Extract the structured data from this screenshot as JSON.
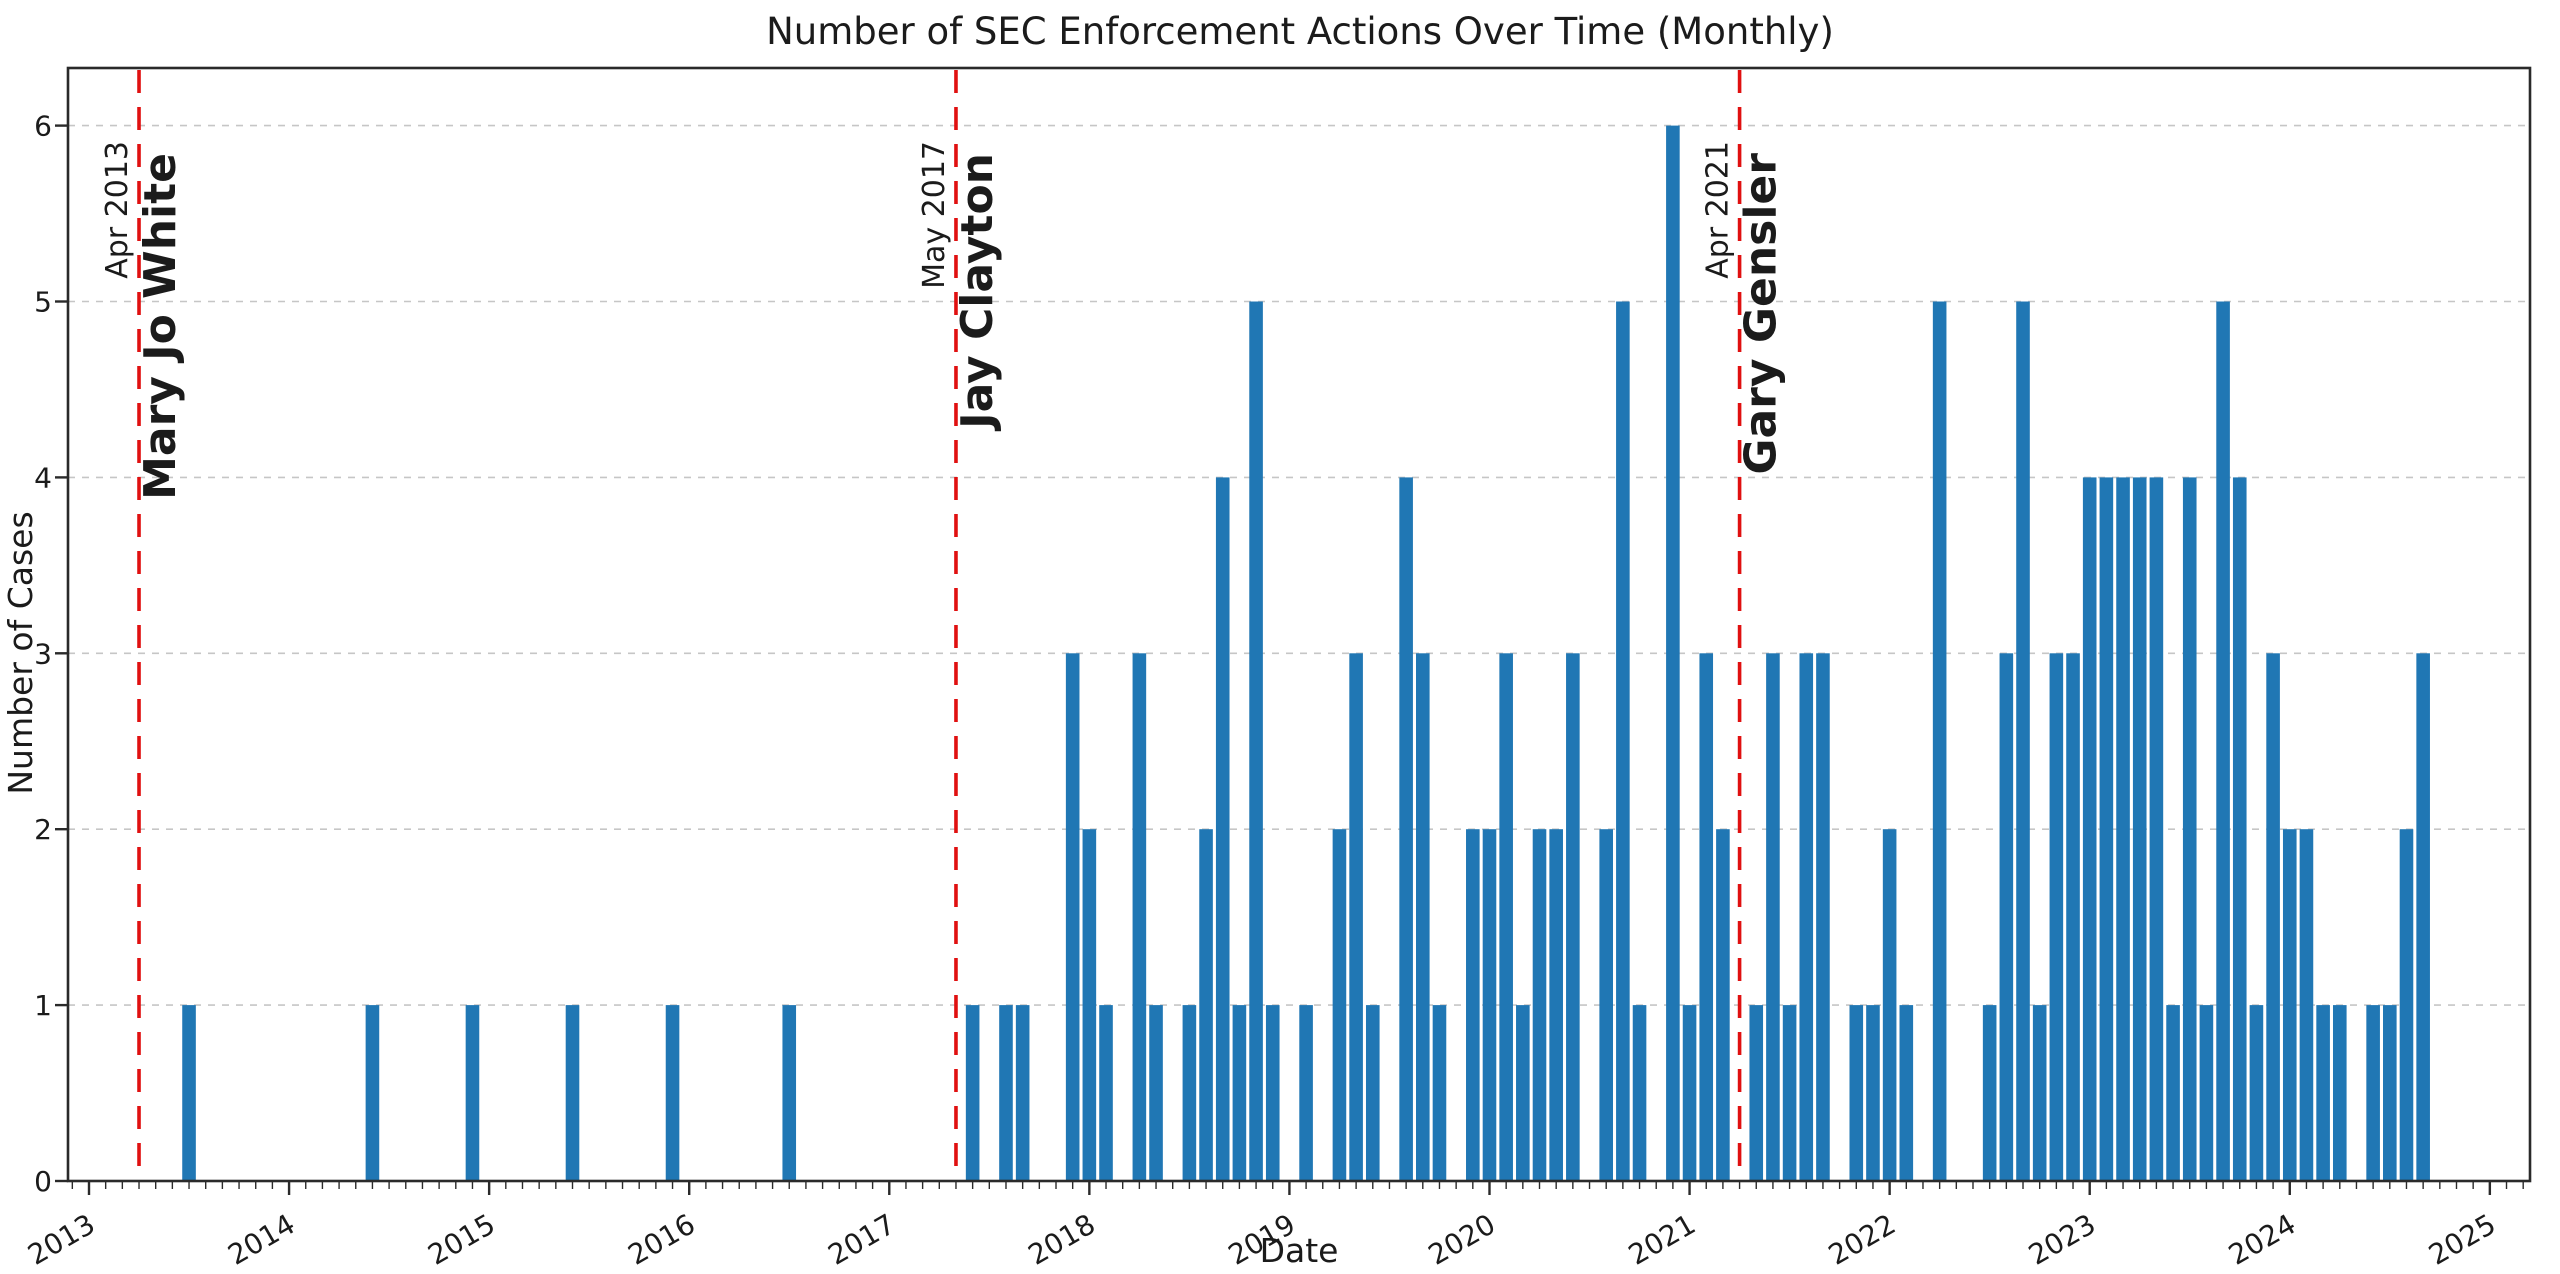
{
  "chart": {
    "title": "Number of SEC Enforcement Actions Over Time (Monthly)",
    "xlabel": "Date",
    "ylabel": "Number of Cases",
    "colors": {
      "bar": "#2077b4",
      "annotation": "#e01010",
      "grid": "#c6c6c6",
      "spine": "#2a2a2a",
      "text": "#1b1b1b"
    },
    "x_tick_years": [
      "2013",
      "2014",
      "2015",
      "2016",
      "2017",
      "2018",
      "2019",
      "2020",
      "2021",
      "2022",
      "2023",
      "2024",
      "2025"
    ],
    "y_tick_values": [
      "0",
      "1",
      "2",
      "3",
      "4",
      "5",
      "6"
    ]
  },
  "chart_data": {
    "type": "bar",
    "title": "Number of SEC Enforcement Actions Over Time (Monthly)",
    "xlabel": "Date",
    "ylabel": "Number of Cases",
    "x_unit": "month",
    "xlim_months": [
      "2012-11",
      "2025-07"
    ],
    "ylim": [
      0,
      6.33
    ],
    "grid": "horizontal-dashed",
    "legend_position": "none",
    "points": [
      {
        "month": "2013-07",
        "value": 1
      },
      {
        "month": "2014-06",
        "value": 1
      },
      {
        "month": "2014-12",
        "value": 1
      },
      {
        "month": "2015-06",
        "value": 1
      },
      {
        "month": "2015-12",
        "value": 1
      },
      {
        "month": "2016-07",
        "value": 1
      },
      {
        "month": "2017-06",
        "value": 1
      },
      {
        "month": "2017-08",
        "value": 1
      },
      {
        "month": "2017-09",
        "value": 1
      },
      {
        "month": "2017-12",
        "value": 3
      },
      {
        "month": "2018-01",
        "value": 2
      },
      {
        "month": "2018-02",
        "value": 1
      },
      {
        "month": "2018-04",
        "value": 3
      },
      {
        "month": "2018-05",
        "value": 1
      },
      {
        "month": "2018-07",
        "value": 1
      },
      {
        "month": "2018-08",
        "value": 2
      },
      {
        "month": "2018-09",
        "value": 4
      },
      {
        "month": "2018-10",
        "value": 1
      },
      {
        "month": "2018-11",
        "value": 5
      },
      {
        "month": "2018-12",
        "value": 1
      },
      {
        "month": "2019-02",
        "value": 1
      },
      {
        "month": "2019-04",
        "value": 2
      },
      {
        "month": "2019-05",
        "value": 3
      },
      {
        "month": "2019-06",
        "value": 1
      },
      {
        "month": "2019-08",
        "value": 4
      },
      {
        "month": "2019-09",
        "value": 3
      },
      {
        "month": "2019-10",
        "value": 1
      },
      {
        "month": "2019-12",
        "value": 2
      },
      {
        "month": "2020-01",
        "value": 2
      },
      {
        "month": "2020-02",
        "value": 3
      },
      {
        "month": "2020-03",
        "value": 1
      },
      {
        "month": "2020-04",
        "value": 2
      },
      {
        "month": "2020-05",
        "value": 2
      },
      {
        "month": "2020-06",
        "value": 3
      },
      {
        "month": "2020-08",
        "value": 2
      },
      {
        "month": "2020-09",
        "value": 5
      },
      {
        "month": "2020-10",
        "value": 1
      },
      {
        "month": "2020-12",
        "value": 6
      },
      {
        "month": "2021-01",
        "value": 1
      },
      {
        "month": "2021-02",
        "value": 3
      },
      {
        "month": "2021-03",
        "value": 2
      },
      {
        "month": "2021-05",
        "value": 1
      },
      {
        "month": "2021-06",
        "value": 3
      },
      {
        "month": "2021-07",
        "value": 1
      },
      {
        "month": "2021-08",
        "value": 3
      },
      {
        "month": "2021-09",
        "value": 3
      },
      {
        "month": "2021-11",
        "value": 1
      },
      {
        "month": "2021-12",
        "value": 1
      },
      {
        "month": "2022-01",
        "value": 2
      },
      {
        "month": "2022-02",
        "value": 1
      },
      {
        "month": "2022-04",
        "value": 5
      },
      {
        "month": "2022-07",
        "value": 1
      },
      {
        "month": "2022-08",
        "value": 3
      },
      {
        "month": "2022-09",
        "value": 5
      },
      {
        "month": "2022-10",
        "value": 1
      },
      {
        "month": "2022-11",
        "value": 3
      },
      {
        "month": "2022-12",
        "value": 3
      },
      {
        "month": "2023-01",
        "value": 4
      },
      {
        "month": "2023-02",
        "value": 4
      },
      {
        "month": "2023-03",
        "value": 4
      },
      {
        "month": "2023-04",
        "value": 4
      },
      {
        "month": "2023-05",
        "value": 4
      },
      {
        "month": "2023-06",
        "value": 1
      },
      {
        "month": "2023-07",
        "value": 4
      },
      {
        "month": "2023-08",
        "value": 1
      },
      {
        "month": "2023-09",
        "value": 5
      },
      {
        "month": "2023-10",
        "value": 4
      },
      {
        "month": "2023-11",
        "value": 1
      },
      {
        "month": "2023-12",
        "value": 3
      },
      {
        "month": "2024-01",
        "value": 2
      },
      {
        "month": "2024-02",
        "value": 2
      },
      {
        "month": "2024-03",
        "value": 1
      },
      {
        "month": "2024-04",
        "value": 1
      },
      {
        "month": "2024-06",
        "value": 1
      },
      {
        "month": "2024-07",
        "value": 1
      },
      {
        "month": "2024-08",
        "value": 2
      },
      {
        "month": "2024-09",
        "value": 3
      }
    ],
    "annotations": [
      {
        "month": "2013-04",
        "date_label": "Apr 2013",
        "name": "Mary Jo White"
      },
      {
        "month": "2017-05",
        "date_label": "May 2017",
        "name": "Jay Clayton"
      },
      {
        "month": "2021-04",
        "date_label": "Apr 2021",
        "name": "Gary Gensler"
      }
    ]
  }
}
